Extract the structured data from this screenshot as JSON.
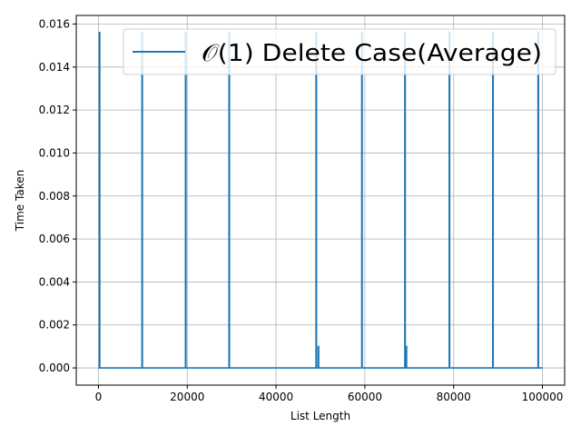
{
  "chart_data": {
    "type": "line",
    "title": "",
    "xlabel": "List Length",
    "ylabel": "Time Taken",
    "xlim": [
      -5000,
      105000
    ],
    "ylim": [
      -0.0008,
      0.0164
    ],
    "xticks": [
      0,
      20000,
      40000,
      60000,
      80000,
      100000
    ],
    "xtick_labels": [
      "0",
      "20000",
      "40000",
      "60000",
      "80000",
      "100000"
    ],
    "yticks": [
      0.0,
      0.002,
      0.004,
      0.006,
      0.008,
      0.01,
      0.012,
      0.014,
      0.016
    ],
    "ytick_labels": [
      "0.000",
      "0.002",
      "0.004",
      "0.006",
      "0.008",
      "0.010",
      "0.012",
      "0.014",
      "0.016"
    ],
    "grid": true,
    "legend_position": "top-right",
    "series": [
      {
        "name": "𝒪(1) Delete Case(Average)",
        "color": "#1f77b4",
        "x": [
          0,
          200,
          200,
          300,
          300,
          9800,
          9800,
          9900,
          9900,
          19600,
          19600,
          19700,
          19700,
          29400,
          29400,
          29500,
          29500,
          49000,
          49000,
          49100,
          49100,
          49500,
          49500,
          49600,
          49600,
          59300,
          59300,
          59400,
          59400,
          69000,
          69000,
          69100,
          69100,
          69300,
          69300,
          69400,
          69400,
          79000,
          79000,
          79100,
          79100,
          88800,
          88800,
          88900,
          88900,
          99000,
          99000,
          99100,
          99100,
          100000
        ],
        "y": [
          0.0,
          0.0,
          0.0156,
          0.0156,
          0.0,
          0.0,
          0.0156,
          0.0156,
          0.0,
          0.0,
          0.0156,
          0.0156,
          0.0,
          0.0,
          0.0156,
          0.0156,
          0.0,
          0.0,
          0.0156,
          0.0156,
          0.0,
          0.0,
          0.001,
          0.001,
          0.0,
          0.0,
          0.0156,
          0.0156,
          0.0,
          0.0,
          0.0156,
          0.0156,
          0.0,
          0.0,
          0.001,
          0.001,
          0.0,
          0.0,
          0.0156,
          0.0156,
          0.0,
          0.0,
          0.0156,
          0.0156,
          0.0,
          0.0,
          0.0156,
          0.0156,
          0.0,
          0.0
        ]
      }
    ]
  }
}
